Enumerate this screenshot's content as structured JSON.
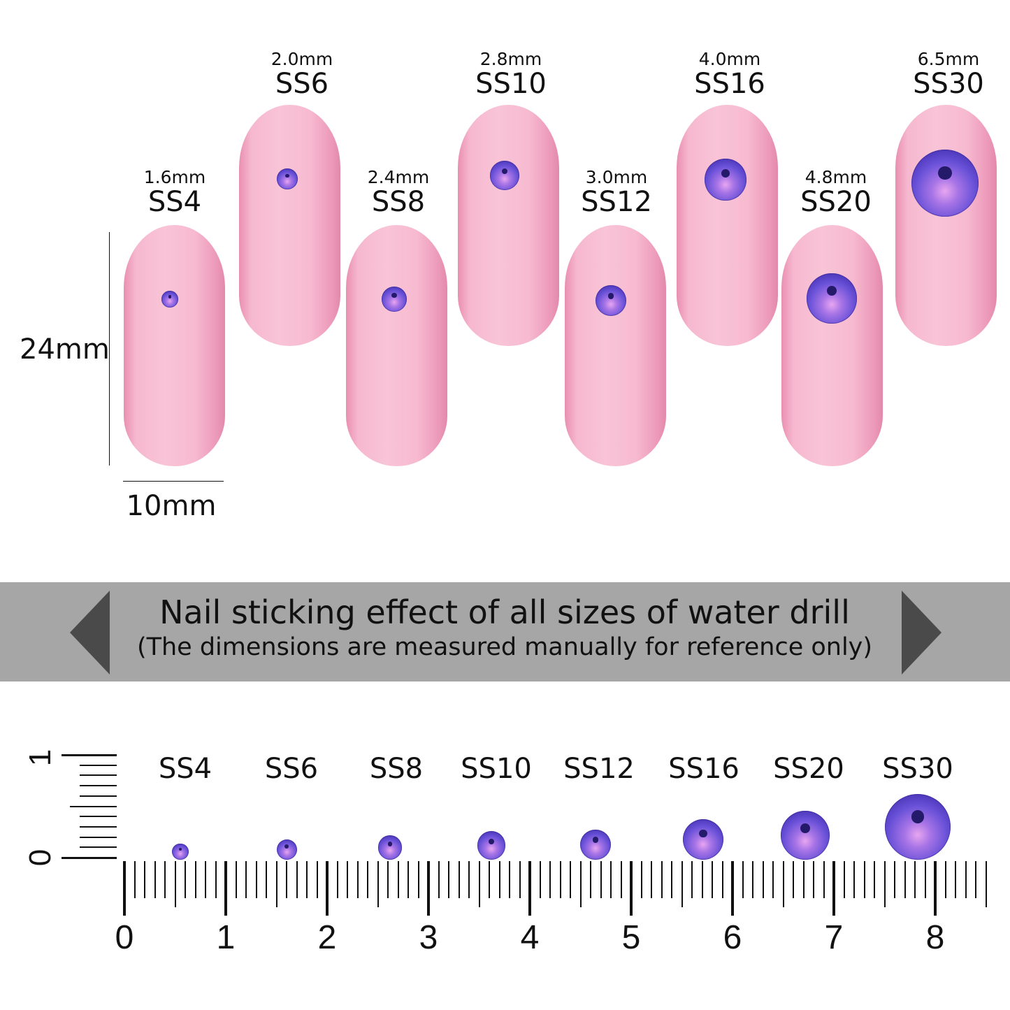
{
  "dimensions": {
    "height_label": "24mm",
    "width_label": "10mm"
  },
  "sizes": [
    {
      "name": "SS4",
      "diameter": "1.6mm",
      "mm": 1.6
    },
    {
      "name": "SS6",
      "diameter": "2.0mm",
      "mm": 2.0
    },
    {
      "name": "SS8",
      "diameter": "2.4mm",
      "mm": 2.4
    },
    {
      "name": "SS10",
      "diameter": "2.8mm",
      "mm": 2.8
    },
    {
      "name": "SS12",
      "diameter": "3.0mm",
      "mm": 3.0
    },
    {
      "name": "SS16",
      "diameter": "4.0mm",
      "mm": 4.0
    },
    {
      "name": "SS20",
      "diameter": "4.8mm",
      "mm": 4.8
    },
    {
      "name": "SS30",
      "diameter": "6.5mm",
      "mm": 6.5
    }
  ],
  "banner": {
    "title": "Nail sticking effect of all sizes of water drill",
    "subtitle": "(The dimensions are measured manually for reference only)"
  },
  "ruler": {
    "horizontal_labels": [
      "0",
      "1",
      "2",
      "3",
      "4",
      "5",
      "6",
      "7",
      "8"
    ],
    "vertical_labels": [
      "0",
      "1"
    ]
  },
  "colors": {
    "nail": "#f7bad0",
    "gem": "#6a52d8",
    "banner": "#a6a6a6"
  }
}
